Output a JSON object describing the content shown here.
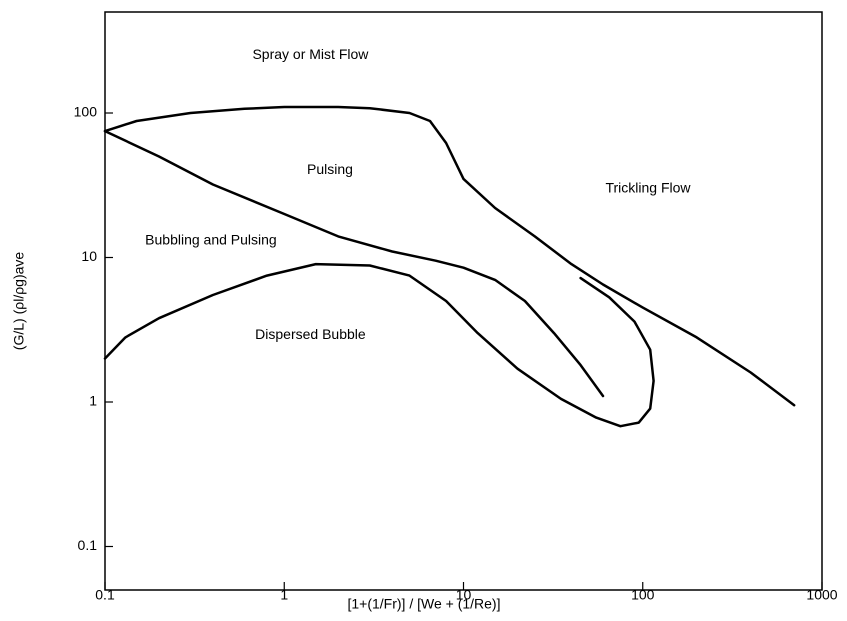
{
  "chart_data": {
    "type": "line",
    "x_label": "[1+(1/Fr)] / [We + (1/Re)]",
    "y_label": "(G/L) (ρl/ρg)ave",
    "log_x": true,
    "log_y": true,
    "xlim": [
      0.1,
      1000
    ],
    "ylim": [
      0.05,
      500
    ],
    "xticks": [
      0.1,
      1,
      10,
      100,
      1000
    ],
    "yticks": [
      0.1,
      1,
      10,
      100
    ],
    "series": [
      {
        "color": "#000000",
        "x": [
          0.1,
          0.15,
          0.3,
          0.6,
          1,
          2,
          3,
          5,
          6.5,
          8,
          10,
          15,
          25,
          40,
          60,
          100,
          200,
          400,
          700
        ],
        "values": [
          75,
          88,
          100,
          107,
          110,
          110,
          108,
          100,
          88,
          62,
          35,
          22,
          14,
          9,
          6.5,
          4.5,
          2.8,
          1.6,
          0.95
        ]
      },
      {
        "color": "#000000",
        "x": [
          0.1,
          0.2,
          0.4,
          1,
          2,
          4,
          7,
          10,
          15,
          22,
          32,
          45,
          60
        ],
        "values": [
          75,
          50,
          32,
          20,
          14,
          11,
          9.5,
          8.5,
          7,
          5,
          3,
          1.8,
          1.1
        ]
      },
      {
        "color": "#000000",
        "x": [
          0.1,
          0.13,
          0.2,
          0.4,
          0.8,
          1.5,
          3,
          5,
          8,
          12,
          20,
          35,
          55,
          75,
          95,
          110,
          115,
          110,
          90,
          65,
          45
        ],
        "values": [
          2,
          2.8,
          3.8,
          5.5,
          7.5,
          9,
          8.8,
          7.5,
          5,
          3,
          1.7,
          1.05,
          0.78,
          0.68,
          0.72,
          0.9,
          1.4,
          2.3,
          3.6,
          5.3,
          7.2
        ]
      }
    ],
    "annotations": [
      {
        "text": "Spray or Mist Flow",
        "x": 1.4,
        "y": 250
      },
      {
        "text": "Pulsing",
        "x": 1.8,
        "y": 40
      },
      {
        "text": "Trickling Flow",
        "x": 107,
        "y": 30
      },
      {
        "text": "Bubbling and Pulsing",
        "x": 0.39,
        "y": 13
      },
      {
        "text": "Dispersed Bubble",
        "x": 1.4,
        "y": 2.9
      }
    ]
  }
}
